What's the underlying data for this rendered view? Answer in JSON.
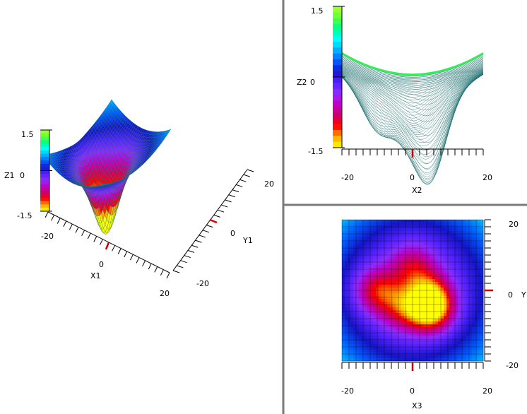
{
  "chart_data": [
    {
      "id": "surface-3d",
      "type": "surface",
      "function": "z = sum of gaussian wells in an upward parabolic bowl",
      "wells": [
        {
          "x": -10,
          "y": 0,
          "depth": 0.8
        },
        {
          "x": 0,
          "y": 7,
          "depth": 0.6
        },
        {
          "x": 5,
          "y": -5,
          "depth": 1.5
        },
        {
          "x": -3,
          "y": -5,
          "depth": 0.6
        },
        {
          "x": 5,
          "y": 0,
          "depth": 0.5
        }
      ],
      "xlabel": "X1",
      "ylabel": "Y1",
      "zlabel": "Z1",
      "x_ticks": [
        "-20",
        "0",
        "20"
      ],
      "y_ticks": [
        "-20",
        "0",
        "20"
      ],
      "z_ticks": [
        "1.5",
        "0",
        "-1.5"
      ],
      "xlim": [
        -20,
        20
      ],
      "ylim": [
        -20,
        20
      ],
      "zlim": [
        -1.5,
        1.5
      ]
    },
    {
      "id": "side-projection",
      "type": "line",
      "xlabel": "X2",
      "zlabel": "Z2",
      "x_ticks": [
        "-20",
        "0",
        "20"
      ],
      "z_ticks": [
        "1.5",
        "0",
        "-1.5"
      ],
      "xlim": [
        -20,
        20
      ],
      "zlim": [
        -1.5,
        1.5
      ]
    },
    {
      "id": "top-heatmap",
      "type": "heatmap",
      "xlabel": "X3",
      "ylabel": "Y",
      "x_ticks": [
        "-20",
        "0",
        "20"
      ],
      "y_ticks": [
        "20",
        "0",
        "-20"
      ],
      "xlim": [
        -20,
        20
      ],
      "ylim": [
        -20,
        20
      ]
    }
  ],
  "colorscale": [
    "#ffff00",
    "#ffa800",
    "#ff0000",
    "#cc0066",
    "#c000c8",
    "#8c2cff",
    "#5522ff",
    "#1515c8",
    "#0060ff",
    "#00b4ff",
    "#00ffff",
    "#00ff80",
    "#66ff33",
    "#aaff33"
  ],
  "accent_marker": "#d40000",
  "grid_color": "#1f6f6f"
}
